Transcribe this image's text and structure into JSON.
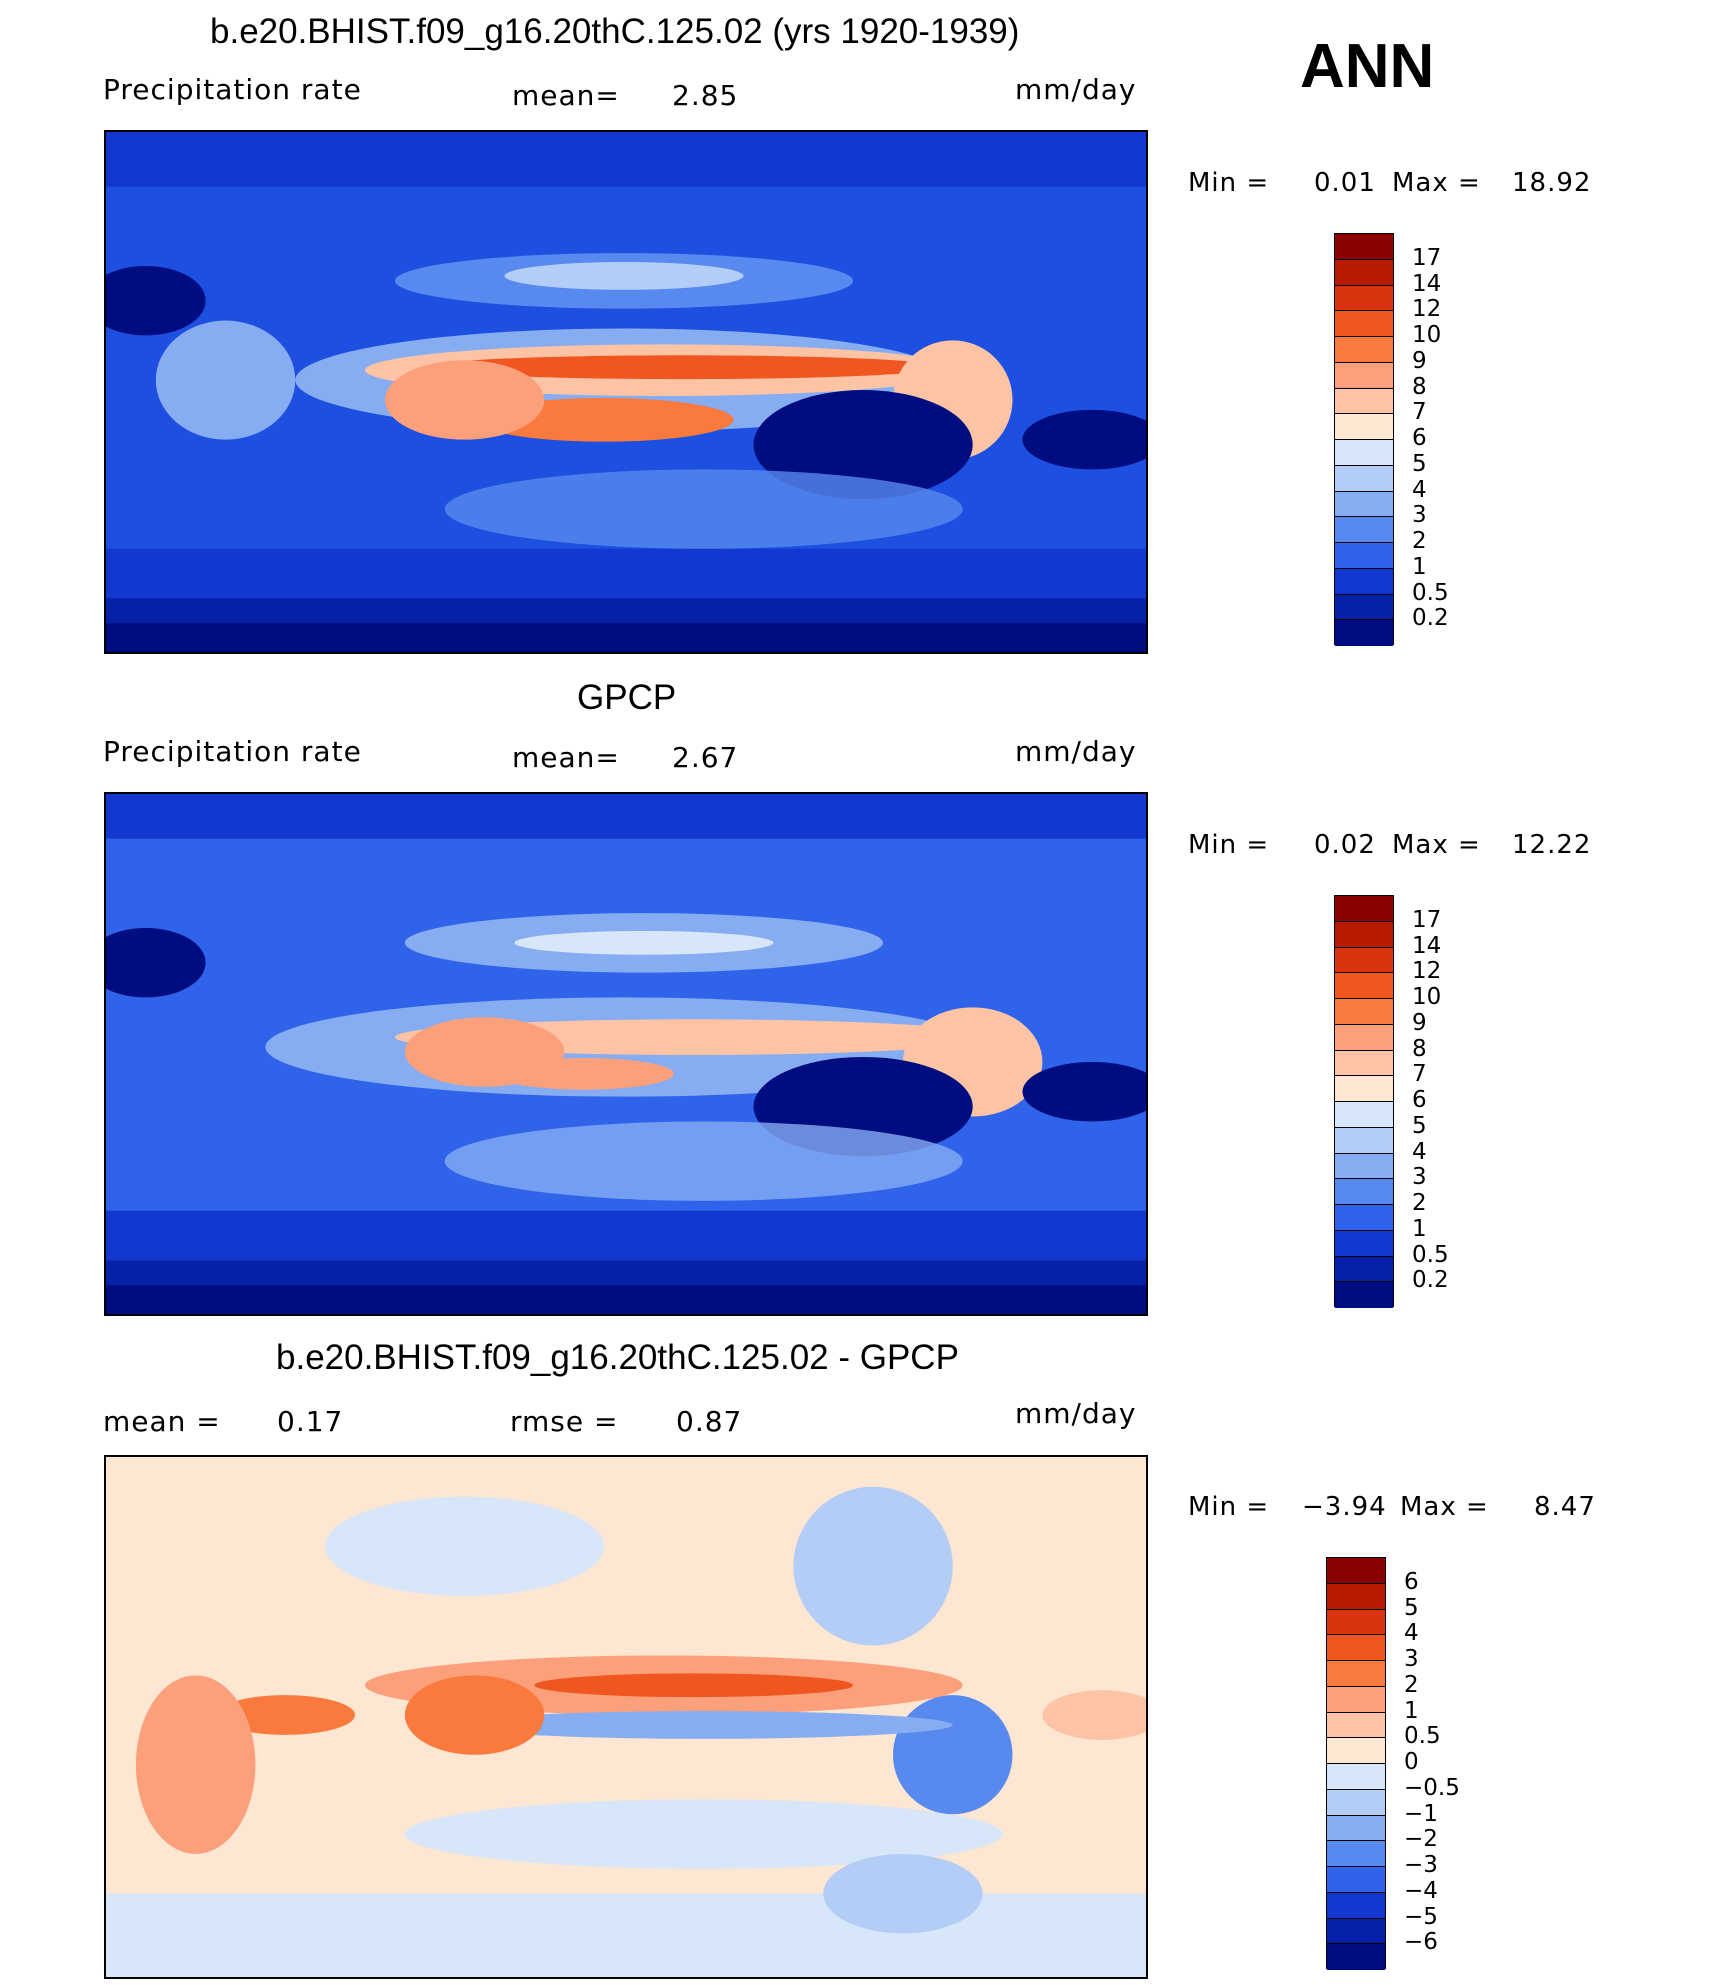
{
  "season": "ANN",
  "panels": [
    {
      "title": "b.e20.BHIST.f09_g16.20thC.125.02 (yrs 1920-1939)",
      "left_label": "Precipitation  rate",
      "mid_label": "mean=",
      "mid_value": "2.85",
      "units": "mm/day",
      "min_label": "Min  =",
      "min_value": "0.01",
      "max_label": "Max  =",
      "max_value": "18.92",
      "levels": [
        "17",
        "14",
        "12",
        "10",
        "9",
        "8",
        "7",
        "6",
        "5",
        "4",
        "3",
        "2",
        "1",
        "0.5",
        "0.2"
      ]
    },
    {
      "title": "GPCP",
      "left_label": "Precipitation  rate",
      "mid_label": "mean=",
      "mid_value": "2.67",
      "units": "mm/day",
      "min_label": "Min  =",
      "min_value": "0.02",
      "max_label": "Max  =",
      "max_value": "12.22",
      "levels": [
        "17",
        "14",
        "12",
        "10",
        "9",
        "8",
        "7",
        "6",
        "5",
        "4",
        "3",
        "2",
        "1",
        "0.5",
        "0.2"
      ]
    },
    {
      "title": "b.e20.BHIST.f09_g16.20thC.125.02 - GPCP",
      "left_label": "mean  =",
      "left_value": "0.17",
      "mid_label": "rmse  =",
      "mid_value": "0.87",
      "units": "mm/day",
      "min_label": "Min  =",
      "min_value": "−3.94",
      "max_label": "Max  =",
      "max_value": "8.47",
      "levels": [
        "6",
        "5",
        "4",
        "3",
        "2",
        "1",
        "0.5",
        "0",
        "−0.5",
        "−1",
        "−2",
        "−3",
        "−4",
        "−5",
        "−6"
      ]
    }
  ],
  "colors": {
    "abs_scale": [
      "#8b0000",
      "#b71c00",
      "#d9330f",
      "#f0561f",
      "#f97a3c",
      "#fca07c",
      "#fcc4a4",
      "#fde6d2",
      "#d7e6f8",
      "#b3cdf6",
      "#86acf2",
      "#5889ee",
      "#2e63ea",
      "#1238d0",
      "#0521a8",
      "#000d80"
    ],
    "diff_scale": [
      "#8b0000",
      "#b71c00",
      "#d9330f",
      "#f0561f",
      "#f97a3c",
      "#fca07c",
      "#fcc4a4",
      "#fde6d2",
      "#d7e6f8",
      "#b3cdf6",
      "#86acf2",
      "#5889ee",
      "#2e63ea",
      "#1238d0",
      "#0521a8",
      "#000d80"
    ]
  }
}
